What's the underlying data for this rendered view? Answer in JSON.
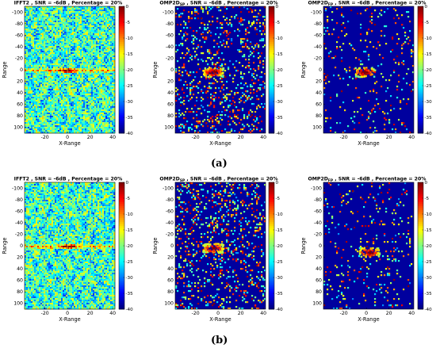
{
  "figure_labels": [
    "(a)",
    "(b)"
  ],
  "chart_data": [
    {
      "type": "heatmap",
      "title": "IFFT2 , SNR = -6dB , Percentage = 20%",
      "title_main": "IFFT2",
      "title_sub": "",
      "title_rest": " , SNR = -6dB , Percentage = 20%",
      "xlabel": "X-Range",
      "ylabel": "Range",
      "xlim": [
        -38,
        42
      ],
      "ylim": [
        110,
        -110
      ],
      "xticks": [
        -20,
        0,
        20,
        40
      ],
      "yticks": [
        -100,
        -80,
        -60,
        -40,
        -20,
        0,
        20,
        40,
        60,
        80,
        100
      ],
      "clim": [
        -40,
        0
      ],
      "cticks": [
        0,
        -5,
        -10,
        -15,
        -20,
        -25,
        -30,
        -35,
        -40
      ],
      "pattern": "dense",
      "target": {
        "x": 0,
        "y": 0
      }
    },
    {
      "type": "heatmap",
      "title": "OMP2D_SP , SNR = -6dB , Percentage = 20%",
      "title_main": "OMP2D",
      "title_sub": "SP",
      "title_rest": " , SNR = -6dB , Percentage = 20%",
      "xlabel": "X-Range",
      "ylabel": "Range",
      "xlim": [
        -38,
        42
      ],
      "ylim": [
        110,
        -110
      ],
      "xticks": [
        -20,
        0,
        20,
        40
      ],
      "yticks": [
        -100,
        -80,
        -60,
        -40,
        -20,
        0,
        20,
        40,
        60,
        80,
        100
      ],
      "clim": [
        -40,
        0
      ],
      "cticks": [
        0,
        -5,
        -10,
        -15,
        -20,
        -25,
        -30,
        -35,
        -40
      ],
      "pattern": "sparse",
      "target": {
        "x": -5,
        "y": 3
      }
    },
    {
      "type": "heatmap",
      "title": "OMP2D_FP , SNR = -6dB , Percentage = 20%",
      "title_main": "OMP2D",
      "title_sub": "FP",
      "title_rest": " , SNR = -6dB , Percentage = 20%",
      "xlabel": "X-Range",
      "ylabel": "Range",
      "xlim": [
        -38,
        42
      ],
      "ylim": [
        110,
        -110
      ],
      "xticks": [
        -20,
        0,
        20,
        40
      ],
      "yticks": [
        -100,
        -80,
        -60,
        -40,
        -20,
        0,
        20,
        40,
        60,
        80,
        100
      ],
      "clim": [
        -40,
        0
      ],
      "cticks": [
        0,
        -5,
        -10,
        -15,
        -20,
        -25,
        -30,
        -35,
        -40
      ],
      "pattern": "verysparse",
      "target": {
        "x": -2,
        "y": 3
      }
    },
    {
      "type": "heatmap",
      "title": "IFFT2 , SNR = -6dB , Percentage = 20%",
      "title_main": "IFFT2",
      "title_sub": "",
      "title_rest": " , SNR = -6dB , Percentage = 20%",
      "xlabel": "X-Range",
      "ylabel": "Range",
      "xlim": [
        -38,
        42
      ],
      "ylim": [
        110,
        -110
      ],
      "xticks": [
        -20,
        0,
        20,
        40
      ],
      "yticks": [
        -100,
        -80,
        -60,
        -40,
        -20,
        0,
        20,
        40,
        60,
        80,
        100
      ],
      "clim": [
        -40,
        0
      ],
      "cticks": [
        0,
        -5,
        -10,
        -15,
        -20,
        -25,
        -30,
        -35,
        -40
      ],
      "pattern": "dense",
      "target": {
        "x": 0,
        "y": 0
      }
    },
    {
      "type": "heatmap",
      "title": "OMP2D_SP , SNR = -6dB , Percentage = 20%",
      "title_main": "OMP2D",
      "title_sub": "SP",
      "title_rest": " , SNR = -6dB , Percentage = 20%",
      "xlabel": "X-Range",
      "ylabel": "Range",
      "xlim": [
        -38,
        42
      ],
      "ylim": [
        110,
        -110
      ],
      "xticks": [
        -20,
        0,
        20,
        40
      ],
      "yticks": [
        -100,
        -80,
        -60,
        -40,
        -20,
        0,
        20,
        40,
        60,
        80,
        100
      ],
      "clim": [
        -40,
        0
      ],
      "cticks": [
        0,
        -5,
        -10,
        -15,
        -20,
        -25,
        -30,
        -35,
        -40
      ],
      "pattern": "sparse",
      "target": {
        "x": -5,
        "y": 3
      }
    },
    {
      "type": "heatmap",
      "title": "OMP2D_FP , SNR = -6dB , Percentage = 20%",
      "title_main": "OMP2D",
      "title_sub": "FP",
      "title_rest": " , SNR = -6dB , Percentage = 20%",
      "xlabel": "X-Range",
      "ylabel": "Range",
      "xlim": [
        -38,
        42
      ],
      "ylim": [
        110,
        -110
      ],
      "xticks": [
        -20,
        0,
        20,
        40
      ],
      "yticks": [
        -100,
        -80,
        -60,
        -40,
        -20,
        0,
        20,
        40,
        60,
        80,
        100
      ],
      "clim": [
        -40,
        0
      ],
      "cticks": [
        0,
        -5,
        -10,
        -15,
        -20,
        -25,
        -30,
        -35,
        -40
      ],
      "pattern": "verysparse",
      "target": {
        "x": 2,
        "y": 10
      }
    }
  ]
}
